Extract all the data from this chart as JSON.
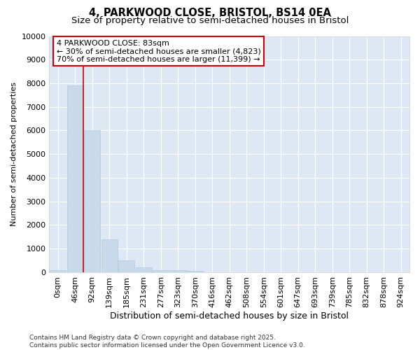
{
  "title_line1": "4, PARKWOOD CLOSE, BRISTOL, BS14 0EA",
  "title_line2": "Size of property relative to semi-detached houses in Bristol",
  "xlabel": "Distribution of semi-detached houses by size in Bristol",
  "ylabel": "Number of semi-detached properties",
  "bar_color": "#c8d9ea",
  "bar_edge_color": "#b0c8dc",
  "background_color": "#dde8f4",
  "fig_background_color": "#ffffff",
  "grid_color": "#ffffff",
  "annotation_box_facecolor": "#ffffff",
  "annotation_box_edgecolor": "#cc0000",
  "property_line_color": "#cc0000",
  "categories": [
    "0sqm",
    "46sqm",
    "92sqm",
    "139sqm",
    "185sqm",
    "231sqm",
    "277sqm",
    "323sqm",
    "370sqm",
    "416sqm",
    "462sqm",
    "508sqm",
    "554sqm",
    "601sqm",
    "647sqm",
    "693sqm",
    "739sqm",
    "785sqm",
    "832sqm",
    "878sqm",
    "924sqm"
  ],
  "values": [
    100,
    7900,
    6000,
    1400,
    500,
    200,
    100,
    75,
    50,
    8,
    4,
    2,
    1,
    1,
    0,
    0,
    0,
    0,
    0,
    0,
    0
  ],
  "ylim": [
    0,
    10000
  ],
  "yticks": [
    0,
    1000,
    2000,
    3000,
    4000,
    5000,
    6000,
    7000,
    8000,
    9000,
    10000
  ],
  "property_label": "4 PARKWOOD CLOSE: 83sqm",
  "annotation_line1": "← 30% of semi-detached houses are smaller (4,823)",
  "annotation_line2": "70% of semi-detached houses are larger (11,399) →",
  "property_bar_index": 1,
  "footer_line1": "Contains HM Land Registry data © Crown copyright and database right 2025.",
  "footer_line2": "Contains public sector information licensed under the Open Government Licence v3.0.",
  "title_fontsize": 10.5,
  "subtitle_fontsize": 9.5,
  "annotation_fontsize": 8,
  "ylabel_fontsize": 8,
  "xlabel_fontsize": 9,
  "tick_fontsize": 8,
  "footer_fontsize": 6.5
}
